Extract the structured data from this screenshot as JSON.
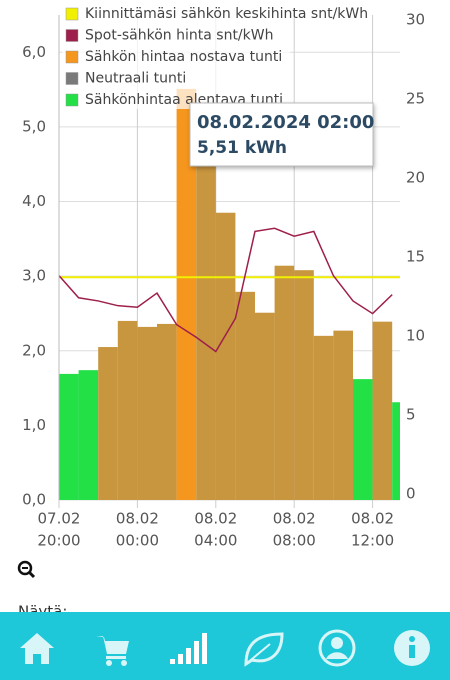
{
  "chart_data": {
    "type": "bar",
    "categories": [
      [
        "07.02",
        "20:00"
      ],
      null,
      null,
      null,
      [
        "08.02",
        "00:00"
      ],
      null,
      null,
      null,
      [
        "08.02",
        "04:00"
      ],
      null,
      null,
      null,
      [
        "08.02",
        "08:00"
      ],
      null,
      null,
      null,
      [
        "08.02",
        "12:00"
      ],
      null
    ],
    "values": [
      1.69,
      1.74,
      2.05,
      2.4,
      2.32,
      2.36,
      5.51,
      4.62,
      3.85,
      2.79,
      2.51,
      3.14,
      3.08,
      2.2,
      2.27,
      1.62,
      2.39,
      1.31
    ],
    "bar_colors": [
      "#22e046",
      "#22e046",
      "#c8963f",
      "#c8963f",
      "#c8963f",
      "#c8963f",
      "#f5961e",
      "#c8963f",
      "#c8963f",
      "#c8963f",
      "#c8963f",
      "#c8963f",
      "#c8963f",
      "#c8963f",
      "#c8963f",
      "#22e046",
      "#c8963f",
      "#22e046"
    ],
    "series": [
      {
        "name": "Kiinnittämäsi sähkön keskihinta snt/kWh",
        "color": "#f0f000",
        "type": "line",
        "axis": "y2",
        "value": 14.1
      },
      {
        "name": "Spot-sähkön hinta snt/kWh",
        "color": "#9e1f4b",
        "type": "line",
        "axis": "y2",
        "values": [
          14.2,
          12.8,
          12.6,
          12.3,
          12.2,
          13.1,
          11.1,
          10.3,
          9.4,
          11.5,
          17.0,
          17.2,
          16.7,
          17.0,
          14.2,
          12.6,
          11.8,
          13.0
        ]
      },
      {
        "name": "Sähkön hintaa nostava tunti",
        "color": "#f5961e"
      },
      {
        "name": "Neutraali tunti",
        "color": "#7a7a7a"
      },
      {
        "name": "Sähkönhintaa alentava tunti",
        "color": "#22e046"
      }
    ],
    "ylim": [
      0,
      6.5
    ],
    "yticks": [
      {
        "value": 0,
        "label": "0,0"
      },
      {
        "value": 1,
        "label": "1,0"
      },
      {
        "value": 2,
        "label": "2,0"
      },
      {
        "value": 3,
        "label": "3,0"
      },
      {
        "value": 4,
        "label": "4,0"
      },
      {
        "value": 5,
        "label": "5,0"
      },
      {
        "value": 6,
        "label": "6,0"
      }
    ],
    "y2lim": [
      0,
      30.7
    ],
    "y2ticks": [
      0,
      5,
      10,
      15,
      20,
      25,
      30
    ],
    "grid": true,
    "tooltip": {
      "title": "08.02.2024 02:00",
      "value": "5,51 kWh"
    }
  },
  "show_label": "Näytä:"
}
